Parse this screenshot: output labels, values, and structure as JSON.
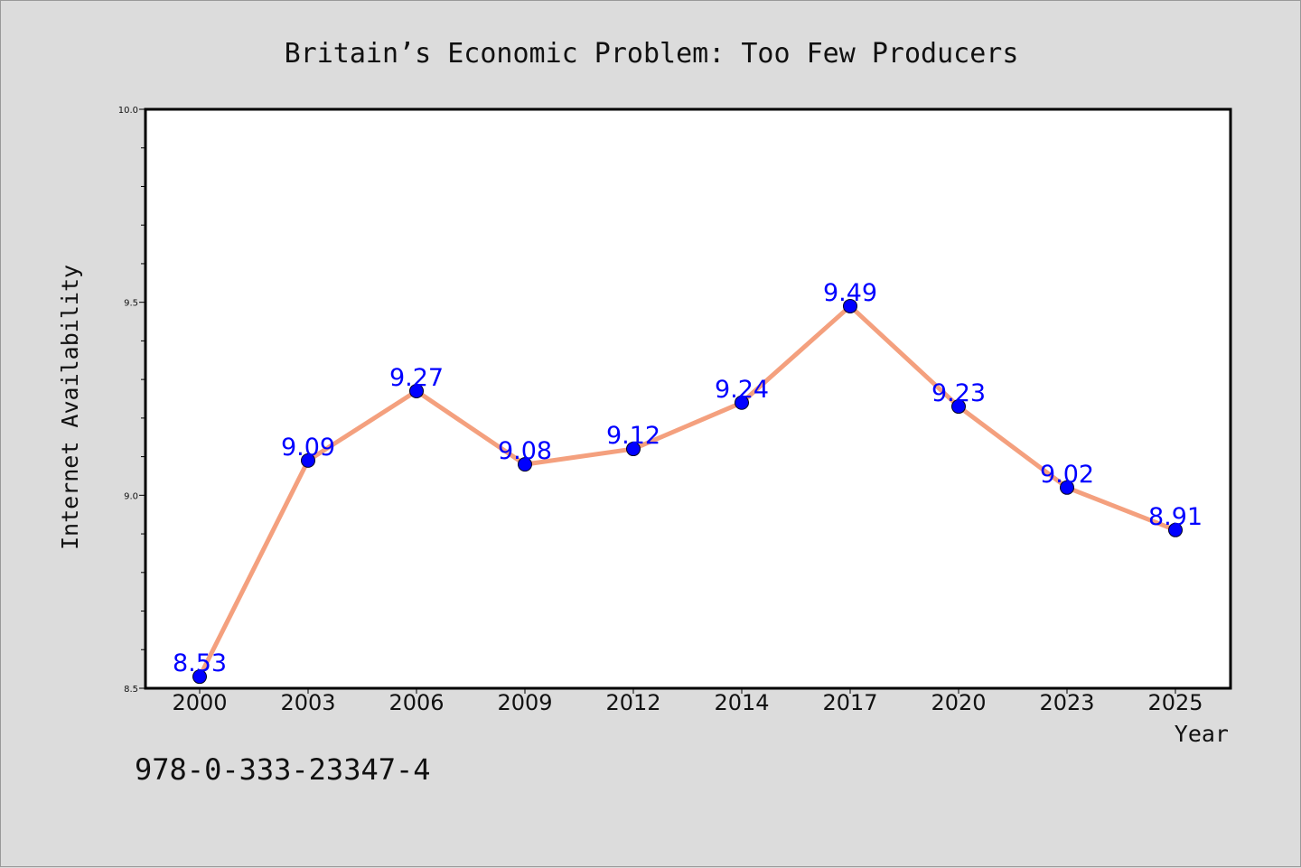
{
  "chart_data": {
    "type": "line",
    "title": "Britain’s Economic Problem: Too Few Producers",
    "xlabel": "Year",
    "ylabel": "Internet Availability",
    "categories": [
      "2000",
      "2003",
      "2006",
      "2009",
      "2012",
      "2014",
      "2017",
      "2020",
      "2023",
      "2025"
    ],
    "series": [
      {
        "values": [
          8.53,
          9.09,
          9.27,
          9.08,
          9.12,
          9.24,
          9.49,
          9.23,
          9.02,
          8.91
        ]
      }
    ],
    "data_labels": [
      "8.53",
      "9.09",
      "9.27",
      "9.08",
      "9.12",
      "9.24",
      "9.49",
      "9.23",
      "9.02",
      "8.91"
    ],
    "ylim": [
      8.5,
      10.0
    ],
    "yticks": [
      "8.5",
      "9.0",
      "9.5",
      "10.0"
    ],
    "grid": false,
    "line_color": "#f4a07e",
    "marker_color": "#0000ff"
  },
  "footer": {
    "isbn": "978-0-333-23347-4"
  }
}
